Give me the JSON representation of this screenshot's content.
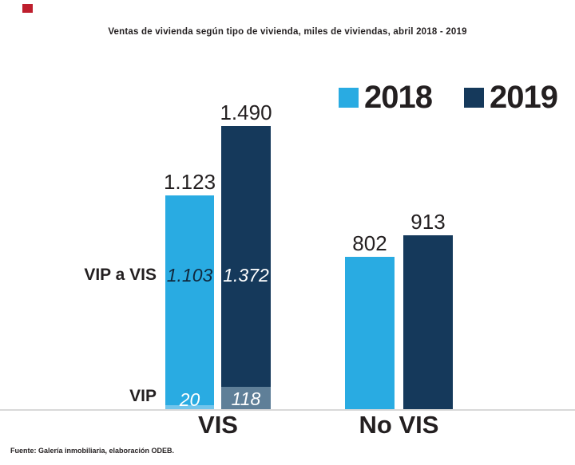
{
  "page": {
    "title": "Ventas de vivienda según tipo de vivienda, miles de viviendas, abril 2018 - 2019",
    "footer": "Fuente: Galería inmobiliaria, elaboración ODEB.",
    "background": "#FFFFFF",
    "brand_mark_color": "#BE1E2D"
  },
  "colors": {
    "series_2018_blue": "#29ABE2",
    "series_2019_navy": "#15395B",
    "vip_2018_light_blue": "#72C5EC",
    "vip_2019_slate_blue": "#5F7F98",
    "axis_line_gray": "#D9D9D9",
    "text_dark": "#231F20"
  },
  "chart_data": {
    "type": "bar",
    "subtype": "grouped columns; VIS category stacked into VIP a VIS + VIP segments",
    "title": "Ventas de vivienda según tipo de vivienda, miles de viviendas, abril 2018 - 2019",
    "categories": [
      "VIS",
      "No VIS"
    ],
    "row_labels": [
      "VIP a VIS",
      "VIP"
    ],
    "legend_position": "top-right",
    "grid": false,
    "value_axis_visible": false,
    "value_range": [
      0,
      1600
    ],
    "pixels_per_unit": 0.2387,
    "series": [
      {
        "name": "2018",
        "color": "#29ABE2",
        "data": [
          {
            "category": "VIS",
            "total": 1123,
            "total_label": "1.123",
            "segments": [
              {
                "name": "VIP a VIS",
                "value": 1103,
                "label": "1.103"
              },
              {
                "name": "VIP",
                "value": 20,
                "label": "20"
              }
            ]
          },
          {
            "category": "No VIS",
            "total": 802,
            "total_label": "802"
          }
        ]
      },
      {
        "name": "2019",
        "color": "#15395B",
        "data": [
          {
            "category": "VIS",
            "total": 1490,
            "total_label": "1.490",
            "segments": [
              {
                "name": "VIP a VIS",
                "value": 1372,
                "label": "1.372"
              },
              {
                "name": "VIP",
                "value": 118,
                "label": "118"
              }
            ]
          },
          {
            "category": "No VIS",
            "total": 913,
            "total_label": "913"
          }
        ]
      }
    ]
  }
}
